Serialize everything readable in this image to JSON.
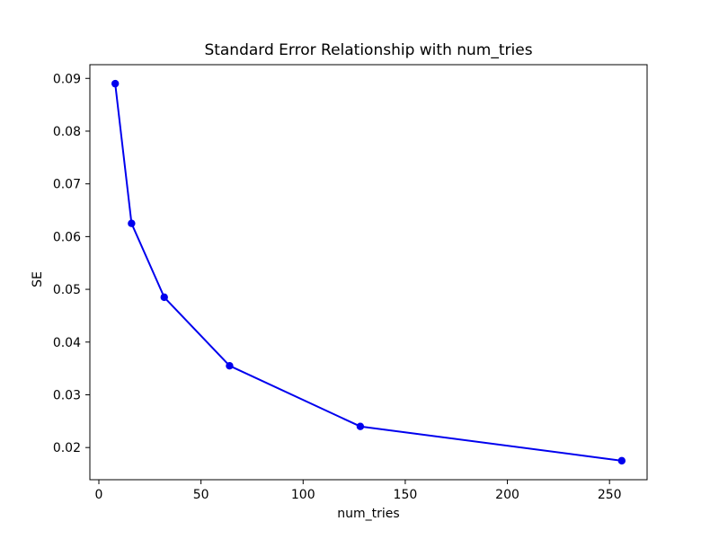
{
  "chart_data": {
    "type": "line",
    "title": "Standard Error Relationship with num_tries",
    "xlabel": "num_tries",
    "ylabel": "SE",
    "x": [
      8,
      16,
      32,
      64,
      128,
      256
    ],
    "y": [
      0.089,
      0.0625,
      0.0485,
      0.0355,
      0.024,
      0.0175
    ],
    "series_name": "SE",
    "xlim": [
      -4.4,
      268.4
    ],
    "ylim": [
      0.0139,
      0.0926
    ],
    "xticks": [
      0,
      50,
      100,
      150,
      200,
      250
    ],
    "xtick_labels": [
      "0",
      "50",
      "100",
      "150",
      "200",
      "250"
    ],
    "yticks": [
      0.02,
      0.03,
      0.04,
      0.05,
      0.06,
      0.07,
      0.08,
      0.09
    ],
    "ytick_labels": [
      "0.02",
      "0.03",
      "0.04",
      "0.05",
      "0.06",
      "0.07",
      "0.08",
      "0.09"
    ],
    "line_color": "#0000ee",
    "marker": "circle",
    "marker_color": "#0000ee",
    "grid": false,
    "legend_position": "none",
    "background_color": "#ffffff",
    "frame_color": "#000000"
  }
}
